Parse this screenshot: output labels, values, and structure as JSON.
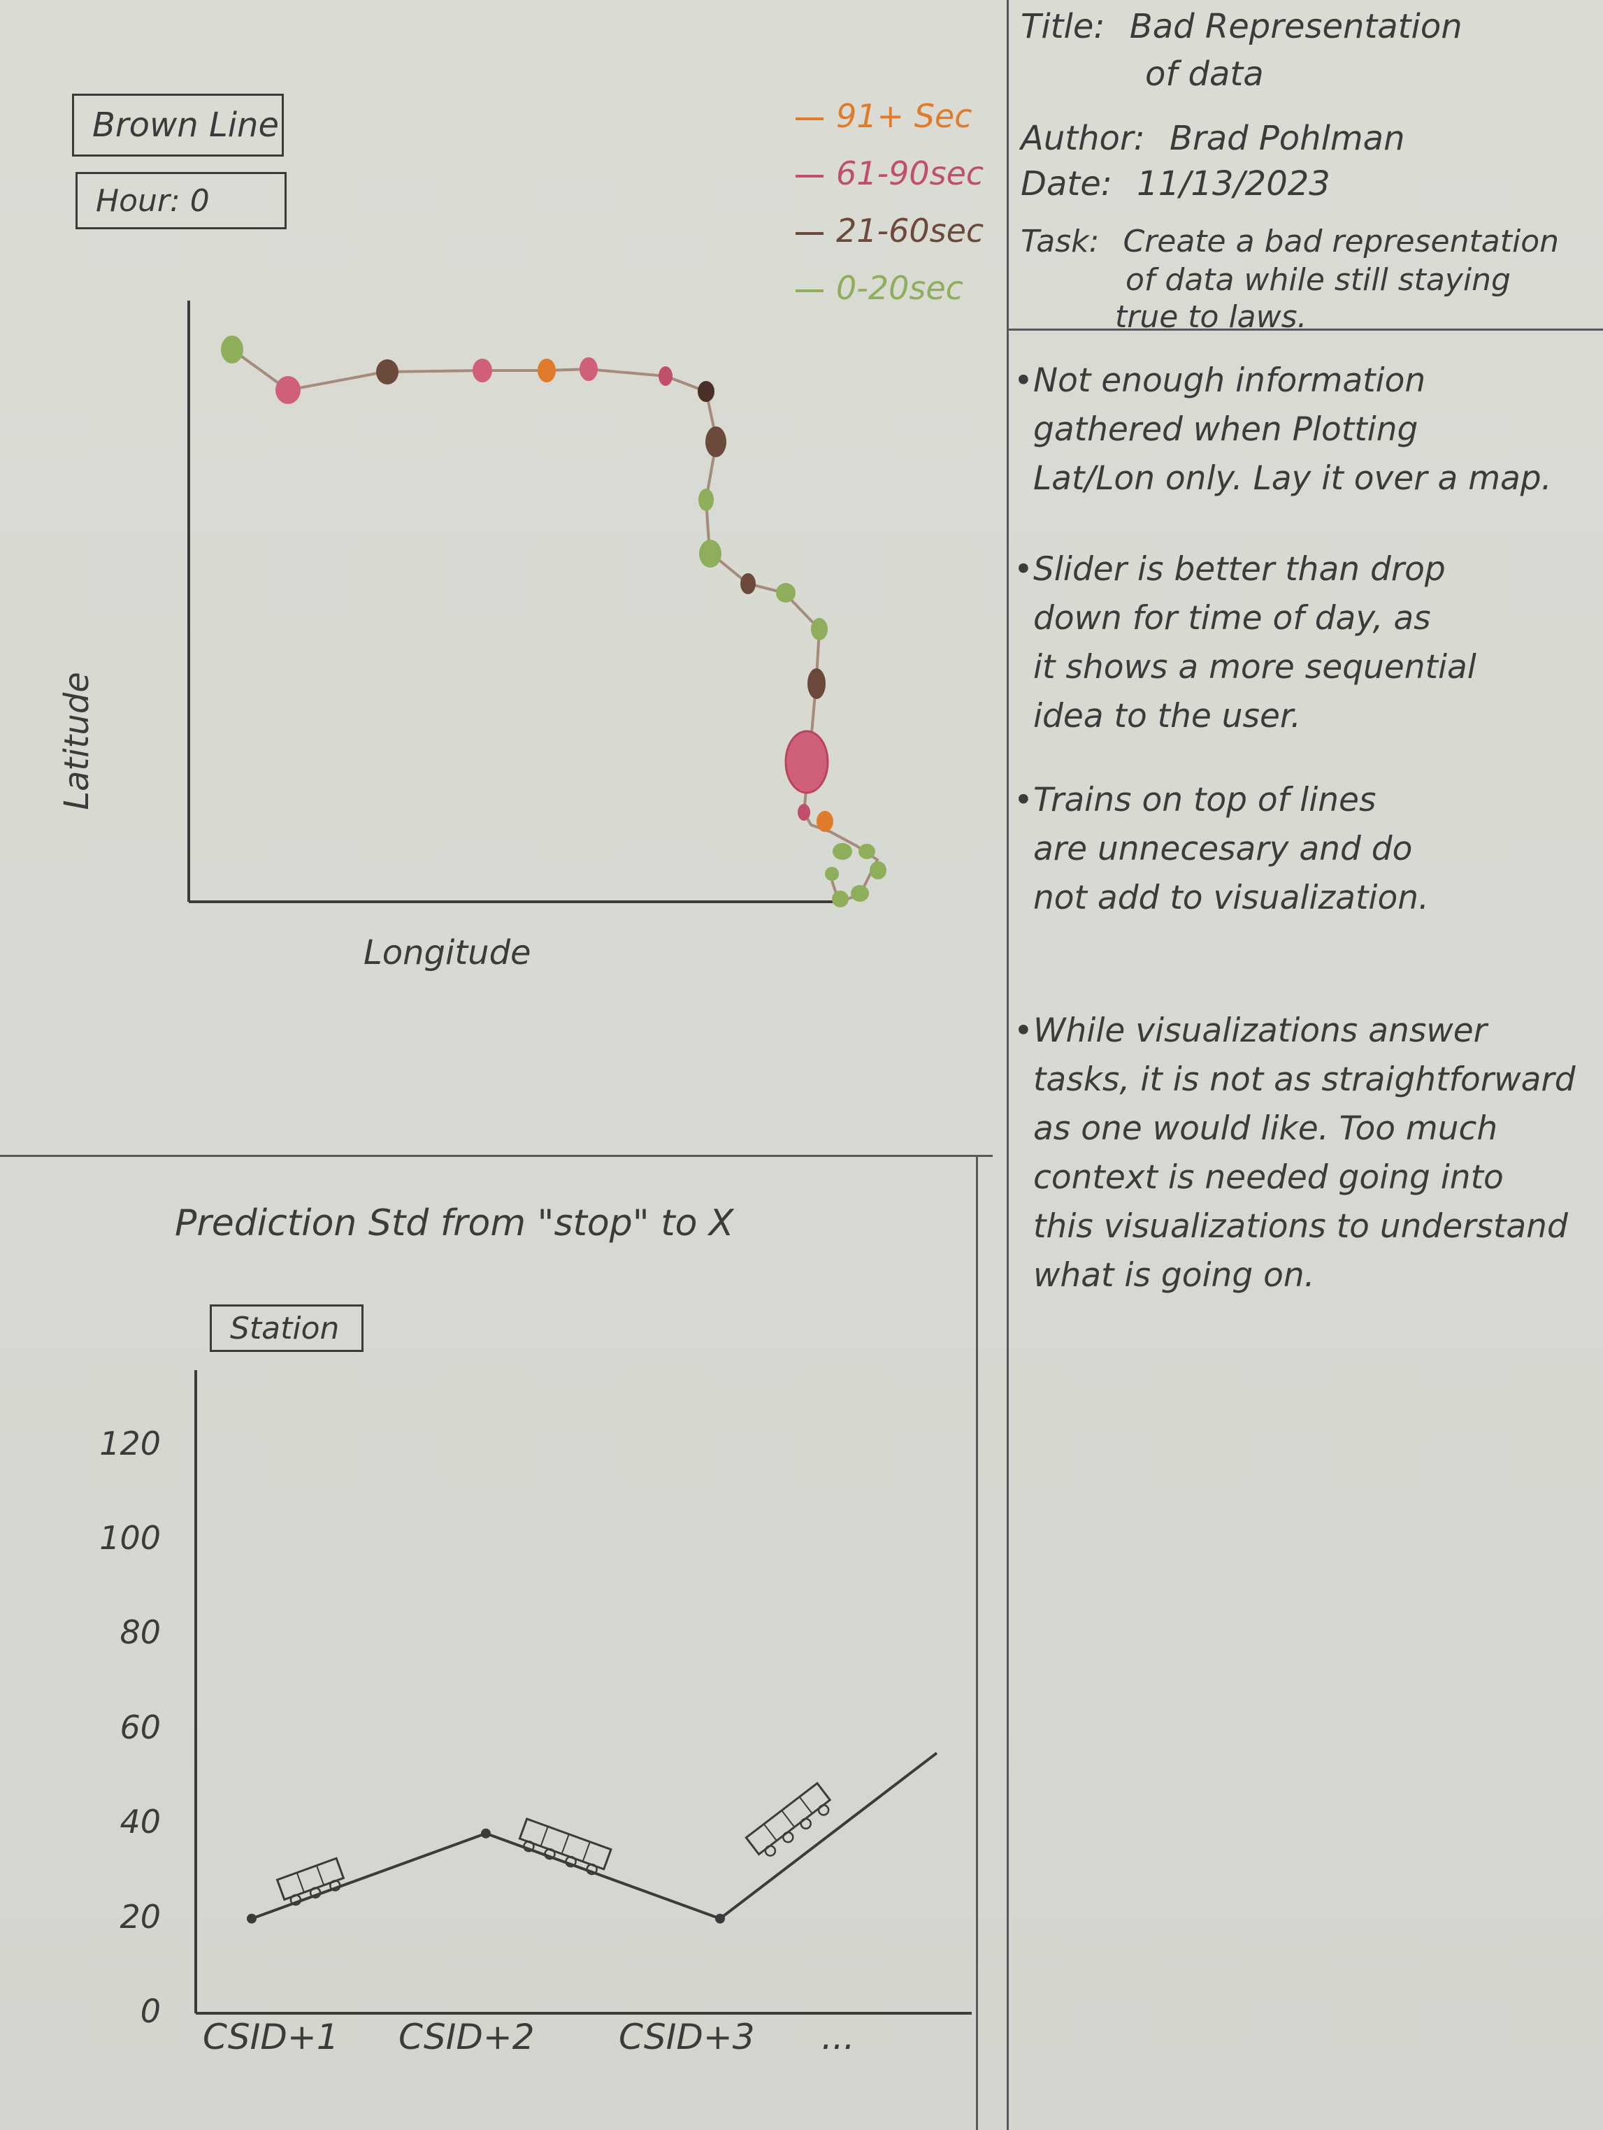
{
  "header": {
    "title_label": "Title:",
    "title_value_line1": "Bad Representation",
    "title_value_line2": "of data",
    "author_label": "Author:",
    "author_value": "Brad Pohlman",
    "date_label": "Date:",
    "date_value": "11/13/2023",
    "task_label": "Task:",
    "task_line1": "Create a bad representation",
    "task_line2": "of data while still staying",
    "task_line3": "true to laws."
  },
  "controls": {
    "line_select": "Brown Line",
    "hour_box": "Hour: 0",
    "station_box": "Station"
  },
  "legend": {
    "items": [
      {
        "label": "91+ Sec",
        "color": "#e07b2c"
      },
      {
        "label": "61-90sec",
        "color": "#c0506a"
      },
      {
        "label": "21-60sec",
        "color": "#6b4a3c"
      },
      {
        "label": "0-20sec",
        "color": "#8fae5c"
      }
    ]
  },
  "map_chart": {
    "xlabel": "Longitude",
    "ylabel": "Latitude"
  },
  "notes": [
    {
      "bullet": "•",
      "lines": [
        "Not enough information",
        "gathered when Plotting",
        "Lat/Lon only. Lay it over a map."
      ]
    },
    {
      "bullet": "•",
      "lines": [
        "Slider is better than drop",
        "down for time of day, as",
        "it shows a more sequential",
        "idea to the user."
      ]
    },
    {
      "bullet": "•",
      "lines": [
        "Trains on top of lines",
        "are unnecesary and do",
        "not add to visualization."
      ]
    },
    {
      "bullet": "•",
      "lines": [
        "While visualizations answer",
        "tasks, it is not as straightforward",
        "as one would like. Too much",
        "context is needed going into",
        "this visualizations to understand",
        "what is going on."
      ]
    }
  ],
  "chart_data": {
    "type": "line",
    "title": "Prediction Std from \"stop\" to X",
    "categories": [
      "CSID+1",
      "CSID+2",
      "CSID+3",
      "..."
    ],
    "series": [
      {
        "values": [
          20,
          38,
          20,
          55
        ]
      }
    ],
    "yticks": [
      "0",
      "20",
      "40",
      "60",
      "80",
      "100",
      "120"
    ],
    "ylim": [
      0,
      130
    ]
  }
}
